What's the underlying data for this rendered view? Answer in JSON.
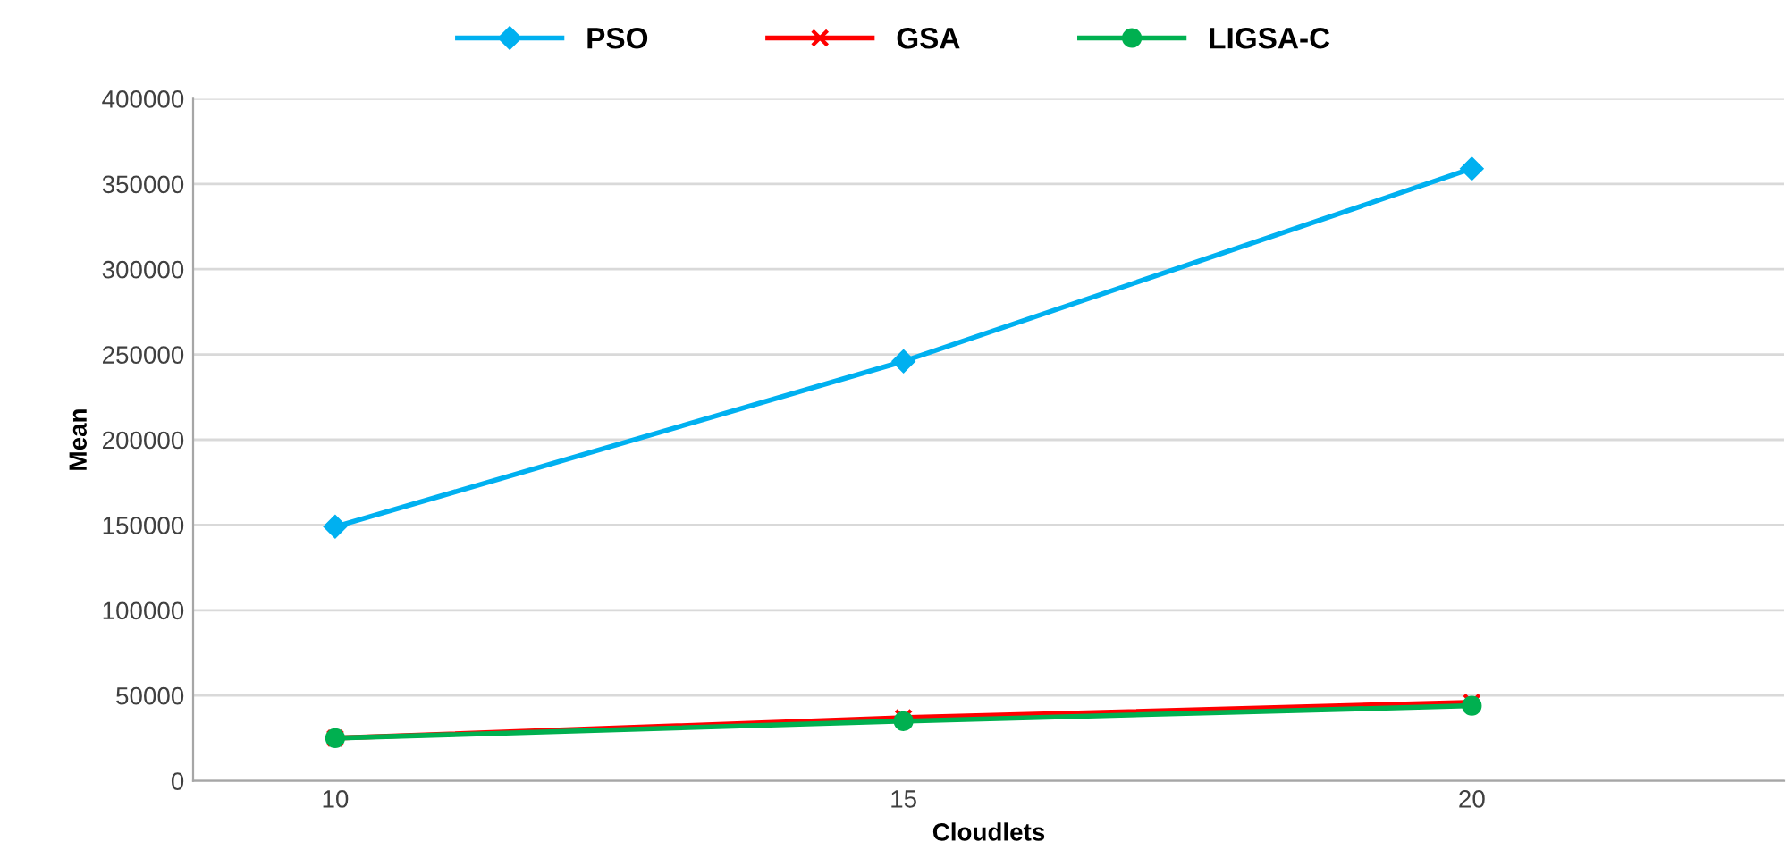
{
  "chart_data": {
    "type": "line",
    "xlabel": "Cloudlets",
    "ylabel": "Mean",
    "categories": [
      "10",
      "15",
      "20"
    ],
    "series": [
      {
        "name": "PSO",
        "color": "#00b0f0",
        "marker": "diamond",
        "values": [
          149000,
          246000,
          359000
        ]
      },
      {
        "name": "GSA",
        "color": "#ff0000",
        "marker": "cross",
        "values": [
          25000,
          37000,
          46000
        ]
      },
      {
        "name": "LIGSA-C",
        "color": "#00b050",
        "marker": "circle",
        "values": [
          25000,
          35000,
          44000
        ]
      }
    ],
    "ylim": [
      0,
      400000
    ],
    "yticks": [
      0,
      50000,
      100000,
      150000,
      200000,
      250000,
      300000,
      350000,
      400000
    ],
    "grid": "y",
    "legend": "top",
    "line_style": "solid"
  }
}
